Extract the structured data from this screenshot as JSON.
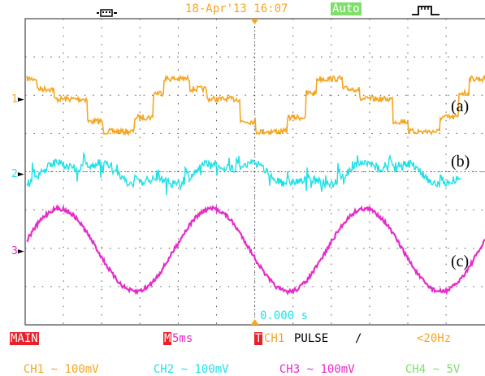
{
  "header": {
    "datetime": "18-Apr'13 16:07",
    "mode": "Auto"
  },
  "traces": [
    {
      "channel_number": "1",
      "label": "(a)",
      "color": "#f5a623"
    },
    {
      "channel_number": "2",
      "label": "(b)",
      "color": "#22e0e8"
    },
    {
      "channel_number": "3",
      "label": "(c)",
      "color": "#e62cc9"
    }
  ],
  "status": {
    "trigger_time": "0.000 s",
    "main_label": "MAIN",
    "timebase_marker": "M",
    "timebase": "5ms",
    "trigger_marker": "T",
    "trigger_source": "CH1",
    "trigger_type": "PULSE",
    "trigger_edge": "/",
    "frequency": "<20Hz"
  },
  "channels": [
    {
      "name": "CH1",
      "coupling": "~",
      "scale": "100mV",
      "color": "#f5a623"
    },
    {
      "name": "CH2",
      "coupling": "~",
      "scale": "100mV",
      "color": "#22e0e8"
    },
    {
      "name": "CH3",
      "coupling": "~",
      "scale": "100mV",
      "color": "#e62cc9"
    },
    {
      "name": "CH4",
      "coupling": "~",
      "scale": "5V",
      "color": "#7ee06a"
    }
  ],
  "colors": {
    "grid": "#555555",
    "header_text": "#f5a623",
    "mode_badge": "#7ee06a",
    "main_badge": "#e8202a"
  }
}
